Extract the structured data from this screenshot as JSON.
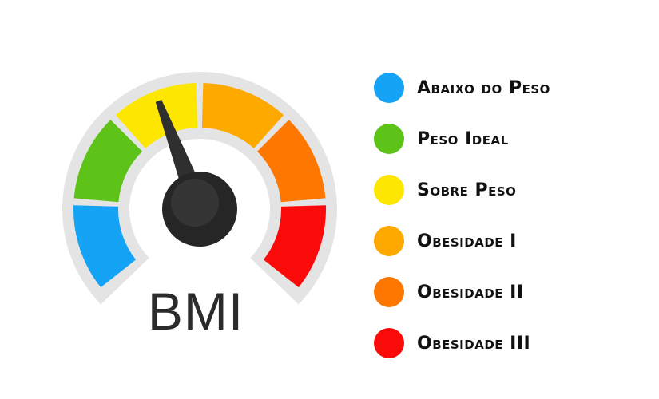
{
  "gauge": {
    "label": "BMI",
    "needle_level": 0.42,
    "segments": [
      {
        "name": "blue",
        "color": "#14a3f5"
      },
      {
        "name": "green",
        "color": "#5ec318"
      },
      {
        "name": "yellow",
        "color": "#fde600"
      },
      {
        "name": "amber",
        "color": "#fea900"
      },
      {
        "name": "orange",
        "color": "#fe7700"
      },
      {
        "name": "red",
        "color": "#fb0a0a"
      }
    ],
    "track_color": "#e4e4e4",
    "needle_color": "#2f2f2f"
  },
  "legend": [
    {
      "label": "Abaixo do Peso",
      "color": "#14a3f5"
    },
    {
      "label": "Peso Ideal",
      "color": "#5ec318"
    },
    {
      "label": "Sobre Peso",
      "color": "#fde600"
    },
    {
      "label": "Obesidade I",
      "color": "#fea900"
    },
    {
      "label": "Obesidade II",
      "color": "#fe7700"
    },
    {
      "label": "Obesidade III",
      "color": "#fb0a0a"
    }
  ]
}
